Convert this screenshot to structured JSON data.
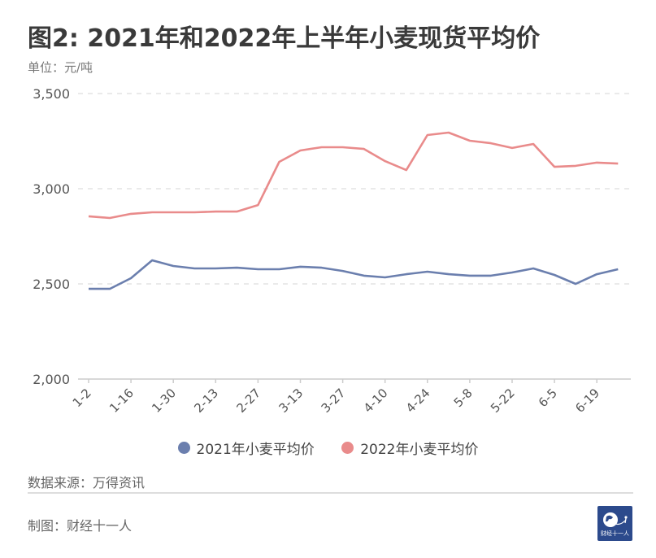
{
  "header": {
    "title": "图2: 2021年和2022年上半年小麦现货平均价",
    "unit": "单位：元/吨"
  },
  "colors": {
    "series_2021": "#6b7fae",
    "series_2022": "#e98b8b",
    "grid": "#dddddd",
    "axis": "#cccccc",
    "logo_bg": "#2c4a8c"
  },
  "chart_data": {
    "type": "line",
    "title": "图2: 2021年和2022年上半年小麦现货平均价",
    "xlabel": "",
    "ylabel": "单位：元/吨",
    "ylim": [
      2000,
      3500
    ],
    "yticks": [
      "2,000",
      "2,500",
      "3,000",
      "3,500"
    ],
    "ytick_values": [
      2000,
      2500,
      3000,
      3500
    ],
    "grid": true,
    "legend_position": "bottom",
    "x": [
      "1-2",
      "1-9",
      "1-16",
      "1-23",
      "1-30",
      "2-6",
      "2-13",
      "2-20",
      "2-27",
      "3-6",
      "3-13",
      "3-20",
      "3-27",
      "4-3",
      "4-10",
      "4-17",
      "4-24",
      "5-1",
      "5-8",
      "5-15",
      "5-22",
      "5-29",
      "6-5",
      "6-12",
      "6-19",
      "6-26"
    ],
    "xtick_labels": [
      "1-2",
      "1-16",
      "1-30",
      "2-13",
      "2-27",
      "3-13",
      "3-27",
      "4-10",
      "4-24",
      "5-8",
      "5-22",
      "6-5",
      "6-19"
    ],
    "series": [
      {
        "name": "2021年小麦平均价",
        "color": "#6b7fae",
        "values": [
          2474,
          2474,
          2530,
          2624,
          2594,
          2581,
          2581,
          2585,
          2577,
          2577,
          2590,
          2585,
          2568,
          2543,
          2534,
          2551,
          2564,
          2551,
          2543,
          2543,
          2560,
          2581,
          2547,
          2500,
          2551,
          2577
        ]
      },
      {
        "name": "2022年小麦平均价",
        "color": "#e98b8b",
        "values": [
          2855,
          2846,
          2868,
          2876,
          2876,
          2876,
          2880,
          2880,
          2914,
          3141,
          3201,
          3218,
          3218,
          3209,
          3145,
          3098,
          3282,
          3295,
          3252,
          3239,
          3214,
          3235,
          3115,
          3120,
          3137,
          3132
        ]
      }
    ]
  },
  "legend": {
    "items": [
      {
        "label": "2021年小麦平均价",
        "color": "#6b7fae"
      },
      {
        "label": "2022年小麦平均价",
        "color": "#e98b8b"
      }
    ]
  },
  "footer": {
    "source": "数据来源：万得资讯",
    "credit": "制图：财经十一人",
    "logo_text": "财经十一人"
  }
}
